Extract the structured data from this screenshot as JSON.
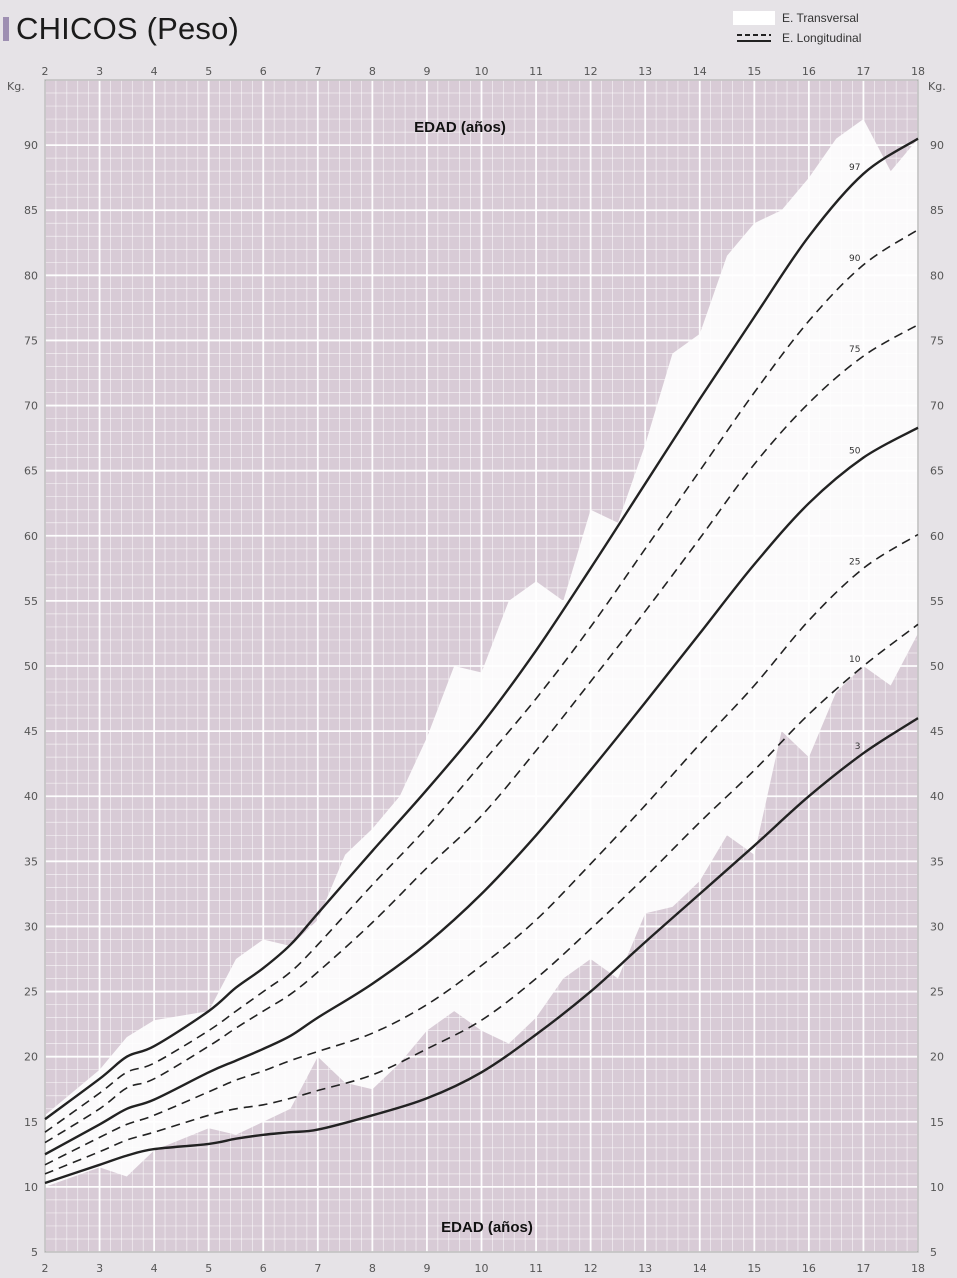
{
  "header": {
    "title": "CHICOS (Peso)"
  },
  "legend": {
    "transversal": "E. Transversal",
    "longitudinal": "E. Longitudinal"
  },
  "colors": {
    "plot_background": "#d8cbd6",
    "grid_line": "#ffffff",
    "band_fill": "#ffffff",
    "curve_line": "#222222",
    "page_background": "#e6e3e7",
    "accent": "#9e8fb2"
  },
  "chart_data": {
    "type": "line",
    "title": "CHICOS (Peso)",
    "xlabel": "EDAD (años)",
    "ylabel": "Kg.",
    "y_unit_label": "Kg.",
    "xlim": [
      2,
      18
    ],
    "ylim": [
      5,
      95
    ],
    "x_ticks": [
      "2",
      "3",
      "4",
      "5",
      "6",
      "7",
      "8",
      "9",
      "10",
      "11",
      "12",
      "13",
      "14",
      "15",
      "16",
      "17",
      "18"
    ],
    "y_ticks": [
      "5",
      "10",
      "15",
      "20",
      "25",
      "30",
      "35",
      "40",
      "45",
      "50",
      "55",
      "60",
      "65",
      "70",
      "75",
      "80",
      "85",
      "90"
    ],
    "grid": true,
    "legend_position": "top-right",
    "legend": [
      "E. Transversal",
      "E. Longitudinal"
    ],
    "x": [
      2,
      3,
      3.5,
      4,
      5,
      5.5,
      6,
      6.5,
      7,
      8,
      9,
      10,
      11,
      12,
      13,
      14,
      15,
      16,
      17,
      18
    ],
    "series": [
      {
        "name": "",
        "label": "97",
        "style": "solid",
        "values": [
          15.2,
          18.3,
          20.0,
          20.8,
          23.5,
          25.3,
          26.8,
          28.6,
          31.0,
          35.8,
          40.5,
          45.5,
          51.2,
          57.5,
          64.0,
          70.5,
          76.8,
          83.0,
          87.8,
          90.5
        ]
      },
      {
        "name": "",
        "label": "90",
        "style": "dashed",
        "values": [
          14.2,
          17.2,
          18.8,
          19.5,
          22.0,
          23.5,
          25.0,
          26.5,
          28.6,
          33.2,
          37.6,
          42.5,
          47.5,
          53.0,
          59.0,
          65.0,
          71.0,
          76.5,
          80.8,
          83.5
        ]
      },
      {
        "name": "",
        "label": "75",
        "style": "dashed",
        "values": [
          13.4,
          16.0,
          17.6,
          18.3,
          20.8,
          22.2,
          23.5,
          24.8,
          26.5,
          30.3,
          34.5,
          38.5,
          43.5,
          48.8,
          54.2,
          59.8,
          65.5,
          70.2,
          73.8,
          76.2
        ]
      },
      {
        "name": "",
        "label": "50",
        "style": "solid",
        "values": [
          12.5,
          14.8,
          16.0,
          16.7,
          18.8,
          19.7,
          20.6,
          21.6,
          23.0,
          25.6,
          28.7,
          32.5,
          37.0,
          42.0,
          47.2,
          52.5,
          57.8,
          62.5,
          66.0,
          68.3
        ]
      },
      {
        "name": "",
        "label": "25",
        "style": "dashed",
        "values": [
          11.7,
          13.8,
          14.8,
          15.5,
          17.3,
          18.2,
          18.9,
          19.7,
          20.4,
          21.8,
          24.0,
          27.0,
          30.5,
          34.8,
          39.3,
          44.0,
          48.5,
          53.5,
          57.5,
          60.1
        ]
      },
      {
        "name": "",
        "label": "10",
        "style": "dashed",
        "values": [
          11.0,
          12.7,
          13.6,
          14.2,
          15.5,
          16.0,
          16.3,
          16.8,
          17.4,
          18.6,
          20.6,
          22.8,
          26.0,
          29.8,
          33.8,
          38.0,
          42.0,
          46.3,
          50.0,
          53.2
        ]
      },
      {
        "name": "",
        "label": "3",
        "style": "solid",
        "values": [
          10.3,
          11.7,
          12.4,
          12.9,
          13.3,
          13.7,
          14.0,
          14.2,
          14.4,
          15.5,
          16.8,
          18.8,
          21.7,
          25.0,
          28.8,
          32.5,
          36.2,
          40.0,
          43.3,
          46.0
        ]
      }
    ],
    "band": {
      "name": "E. Transversal",
      "x": [
        2,
        3,
        3.5,
        4,
        5,
        5.5,
        6,
        6.5,
        7,
        7.5,
        8,
        8.5,
        9,
        9.5,
        10,
        10.5,
        11,
        11.5,
        12,
        12.5,
        13,
        13.5,
        14,
        14.5,
        15,
        15.5,
        16,
        16.5,
        17,
        17.5,
        18
      ],
      "upper": [
        15.5,
        19.0,
        21.5,
        22.8,
        23.5,
        27.5,
        29.0,
        28.5,
        30.5,
        35.5,
        37.5,
        40.0,
        44.5,
        50.0,
        49.5,
        55.0,
        56.5,
        55.0,
        62.0,
        61.0,
        67.0,
        74.0,
        75.5,
        81.5,
        84.0,
        85.0,
        87.5,
        90.5,
        92.0,
        88.0,
        90.5
      ],
      "lower": [
        10.0,
        11.5,
        10.8,
        12.8,
        14.5,
        14.0,
        15.0,
        16.0,
        20.0,
        18.0,
        17.5,
        19.5,
        22.0,
        23.5,
        22.0,
        21.0,
        23.0,
        26.0,
        27.5,
        26.0,
        31.0,
        31.5,
        33.5,
        37.0,
        35.5,
        45.0,
        43.0,
        48.0,
        50.0,
        48.5,
        52.5
      ]
    }
  }
}
